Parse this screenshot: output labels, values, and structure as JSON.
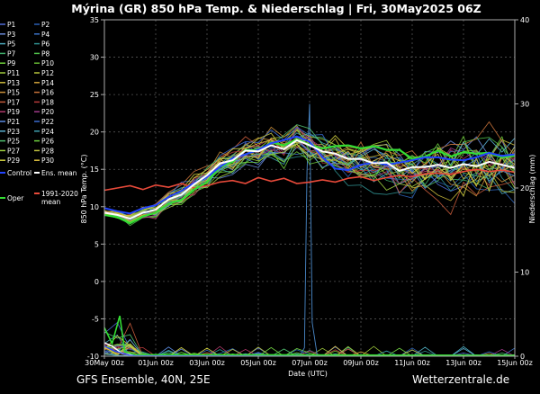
{
  "chart_data": {
    "type": "line",
    "title": "Mýrina  (GR)  850 hPa Temp. & Niederschlag | Fri, 30May2025 06Z",
    "xlabel": "Date (UTC)",
    "ylabel": "850 hPa Temp. (°C)",
    "ylabel_right": "Niederschlag (mm)",
    "ylim": [
      -10,
      35
    ],
    "ylim_right": [
      0,
      40
    ],
    "xlim": [
      0,
      16
    ],
    "x_unit": "days from 30May 00z",
    "x_tick_values": [
      0,
      2,
      4,
      6,
      8,
      10,
      12,
      14,
      16
    ],
    "x_tick_labels": [
      "30May 00z",
      "01Jun 00z",
      "03Jun 00z",
      "05Jun 00z",
      "07Jun 00z",
      "09Jun 00z",
      "11Jun 00z",
      "13Jun 00z",
      "15Jun 00z"
    ],
    "y_ticks": [
      -10,
      -5,
      0,
      5,
      10,
      15,
      20,
      25,
      30,
      35
    ],
    "y_ticks_right": [
      0,
      10,
      20,
      30,
      40
    ],
    "grid": true,
    "legend_placement": "left outside",
    "legend": {
      "pairs": [
        [
          "P1",
          "P2"
        ],
        [
          "P3",
          "P4"
        ],
        [
          "P5",
          "P6"
        ],
        [
          "P7",
          "P8"
        ],
        [
          "P9",
          "P10"
        ],
        [
          "P11",
          "P12"
        ],
        [
          "P13",
          "P14"
        ],
        [
          "P15",
          "P16"
        ],
        [
          "P17",
          "P18"
        ],
        [
          "P19",
          "P20"
        ],
        [
          "P21",
          "P22"
        ],
        [
          "P23",
          "P24"
        ],
        [
          "P25",
          "P26"
        ],
        [
          "P27",
          "P28"
        ],
        [
          "P29",
          "P30"
        ]
      ],
      "colors": [
        [
          "#4f6ad6",
          "#2a5fb3"
        ],
        [
          "#6a8ad8",
          "#3c73c9"
        ],
        [
          "#4ba6b8",
          "#2f8f8f"
        ],
        [
          "#3fae6a",
          "#4fc24a"
        ],
        [
          "#6fcf3a",
          "#66b832"
        ],
        [
          "#9ec93a",
          "#b6c23a"
        ],
        [
          "#c8b83a",
          "#d1a23a"
        ],
        [
          "#c98f3a",
          "#c8723a"
        ],
        [
          "#c45a3a",
          "#b83a3a"
        ],
        [
          "#b23a6a",
          "#a03a8a"
        ],
        [
          "#5a8ae0",
          "#3a6ad0"
        ],
        [
          "#5ab0d0",
          "#40a0b0"
        ],
        [
          "#50c070",
          "#70d040"
        ],
        [
          "#a0d040",
          "#c0c040"
        ],
        [
          "#d0d040",
          "#e0c040"
        ]
      ],
      "control": "Control",
      "ens_mean": "Ens. mean",
      "climate_mean_line1": "1991-2020",
      "climate_mean_line2": "mean",
      "oper": "Oper"
    },
    "series_summary": {
      "x": [
        0,
        0.5,
        1,
        1.5,
        2,
        2.5,
        3,
        3.5,
        4,
        4.5,
        5,
        5.5,
        6,
        6.5,
        7,
        7.5,
        8,
        8.5,
        9,
        9.5,
        10,
        10.5,
        11,
        11.5,
        12,
        12.5,
        13,
        13.5,
        14,
        14.5,
        15,
        15.5,
        16
      ],
      "ens_mean": [
        9.2,
        8.9,
        8.4,
        9.2,
        9.6,
        11,
        11.6,
        13,
        14.2,
        15.8,
        16.2,
        17.5,
        17.4,
        18.2,
        17.7,
        18.9,
        18.2,
        17.4,
        17.1,
        16.4,
        16.4,
        15.8,
        15.9,
        14.8,
        15.3,
        15.3,
        15.6,
        15.2,
        15.7,
        15.4,
        16,
        15.6,
        15.2
      ],
      "control": [
        9.8,
        9.4,
        9.1,
        9.8,
        10.2,
        11.3,
        12.1,
        13.2,
        14,
        15.3,
        16.5,
        17,
        17.6,
        18.5,
        18.9,
        19.4,
        18.7,
        16.6,
        15.1,
        14.9,
        15.6,
        15.9,
        15.6,
        15.9,
        16.2,
        16.6,
        16.6,
        16.3,
        16.2,
        16.6,
        17.2,
        16.8,
        17
      ],
      "oper": [
        8.9,
        8.6,
        7.8,
        8.7,
        9.2,
        10.4,
        10.9,
        12.3,
        13.3,
        15.3,
        16,
        17.6,
        17.5,
        18.6,
        18.2,
        19,
        18.3,
        17.8,
        18.1,
        18.2,
        17.8,
        18.1,
        17.6,
        17.6,
        16.4,
        16.7,
        17.5,
        16.7,
        17.3,
        17.1,
        17.2,
        16.6,
        16.8
      ],
      "climate_mean": [
        12.2,
        12.5,
        12.8,
        12.3,
        12.9,
        12.6,
        13.1,
        12.5,
        12.8,
        13.3,
        13.5,
        13.1,
        13.9,
        13.4,
        13.8,
        13.1,
        13.3,
        13.6,
        13.3,
        13.8,
        14,
        13.5,
        13.9,
        14.2,
        14,
        14.4,
        14.5,
        14.3,
        14.7,
        15,
        14.7,
        14.9,
        14.6
      ]
    }
  },
  "footer": {
    "left": "GFS Ensemble, 40N, 25E",
    "right": "Wetterzentrale.de"
  }
}
